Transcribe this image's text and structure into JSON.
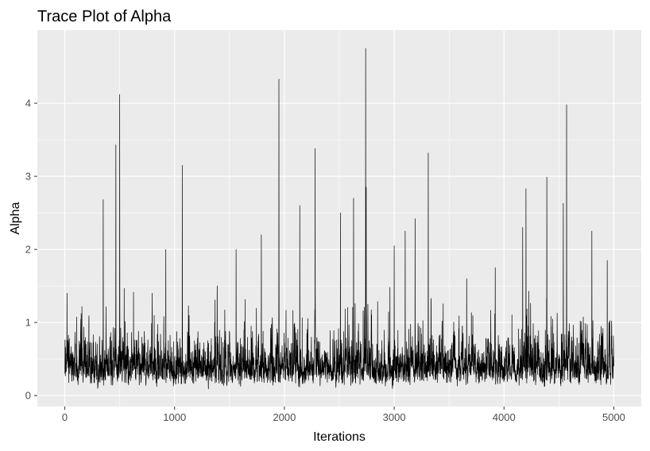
{
  "chart_data": {
    "type": "line",
    "title": "Trace Plot of Alpha",
    "xlabel": "Iterations",
    "ylabel": "Alpha",
    "xlim": [
      -250,
      5250
    ],
    "ylim": [
      -0.15,
      5.0
    ],
    "x_ticks": [
      0,
      1000,
      2000,
      3000,
      4000,
      5000
    ],
    "x_tick_labels": [
      "0",
      "1000",
      "2000",
      "3000",
      "4000",
      "5000"
    ],
    "y_ticks": [
      0,
      1,
      2,
      3,
      4
    ],
    "y_tick_labels": [
      "0",
      "1",
      "2",
      "3",
      "4"
    ],
    "grid": true,
    "background": "#ebebeb",
    "grid_color": "#ffffff",
    "line_color": "#000000",
    "series": [
      {
        "x_start": 1,
        "x_end": 5000,
        "n_iterations": 5000,
        "typical_range": [
          0.1,
          1.0
        ],
        "notable_peaks": [
          {
            "x": 20,
            "y": 1.4
          },
          {
            "x": 350,
            "y": 2.68
          },
          {
            "x": 465,
            "y": 3.43
          },
          {
            "x": 500,
            "y": 4.12
          },
          {
            "x": 920,
            "y": 2.0
          },
          {
            "x": 1070,
            "y": 3.15
          },
          {
            "x": 1560,
            "y": 2.0
          },
          {
            "x": 1790,
            "y": 2.2
          },
          {
            "x": 1950,
            "y": 4.33
          },
          {
            "x": 2140,
            "y": 2.6
          },
          {
            "x": 2280,
            "y": 3.38
          },
          {
            "x": 2510,
            "y": 2.5
          },
          {
            "x": 2630,
            "y": 2.7
          },
          {
            "x": 2740,
            "y": 4.75
          },
          {
            "x": 2745,
            "y": 2.85
          },
          {
            "x": 3000,
            "y": 2.05
          },
          {
            "x": 3100,
            "y": 2.25
          },
          {
            "x": 3190,
            "y": 2.42
          },
          {
            "x": 3310,
            "y": 3.32
          },
          {
            "x": 3660,
            "y": 1.6
          },
          {
            "x": 3920,
            "y": 1.75
          },
          {
            "x": 4170,
            "y": 2.3
          },
          {
            "x": 4200,
            "y": 2.83
          },
          {
            "x": 4390,
            "y": 2.99
          },
          {
            "x": 4540,
            "y": 2.63
          },
          {
            "x": 4570,
            "y": 3.98
          },
          {
            "x": 4800,
            "y": 2.25
          },
          {
            "x": 4940,
            "y": 1.85
          }
        ]
      }
    ]
  }
}
